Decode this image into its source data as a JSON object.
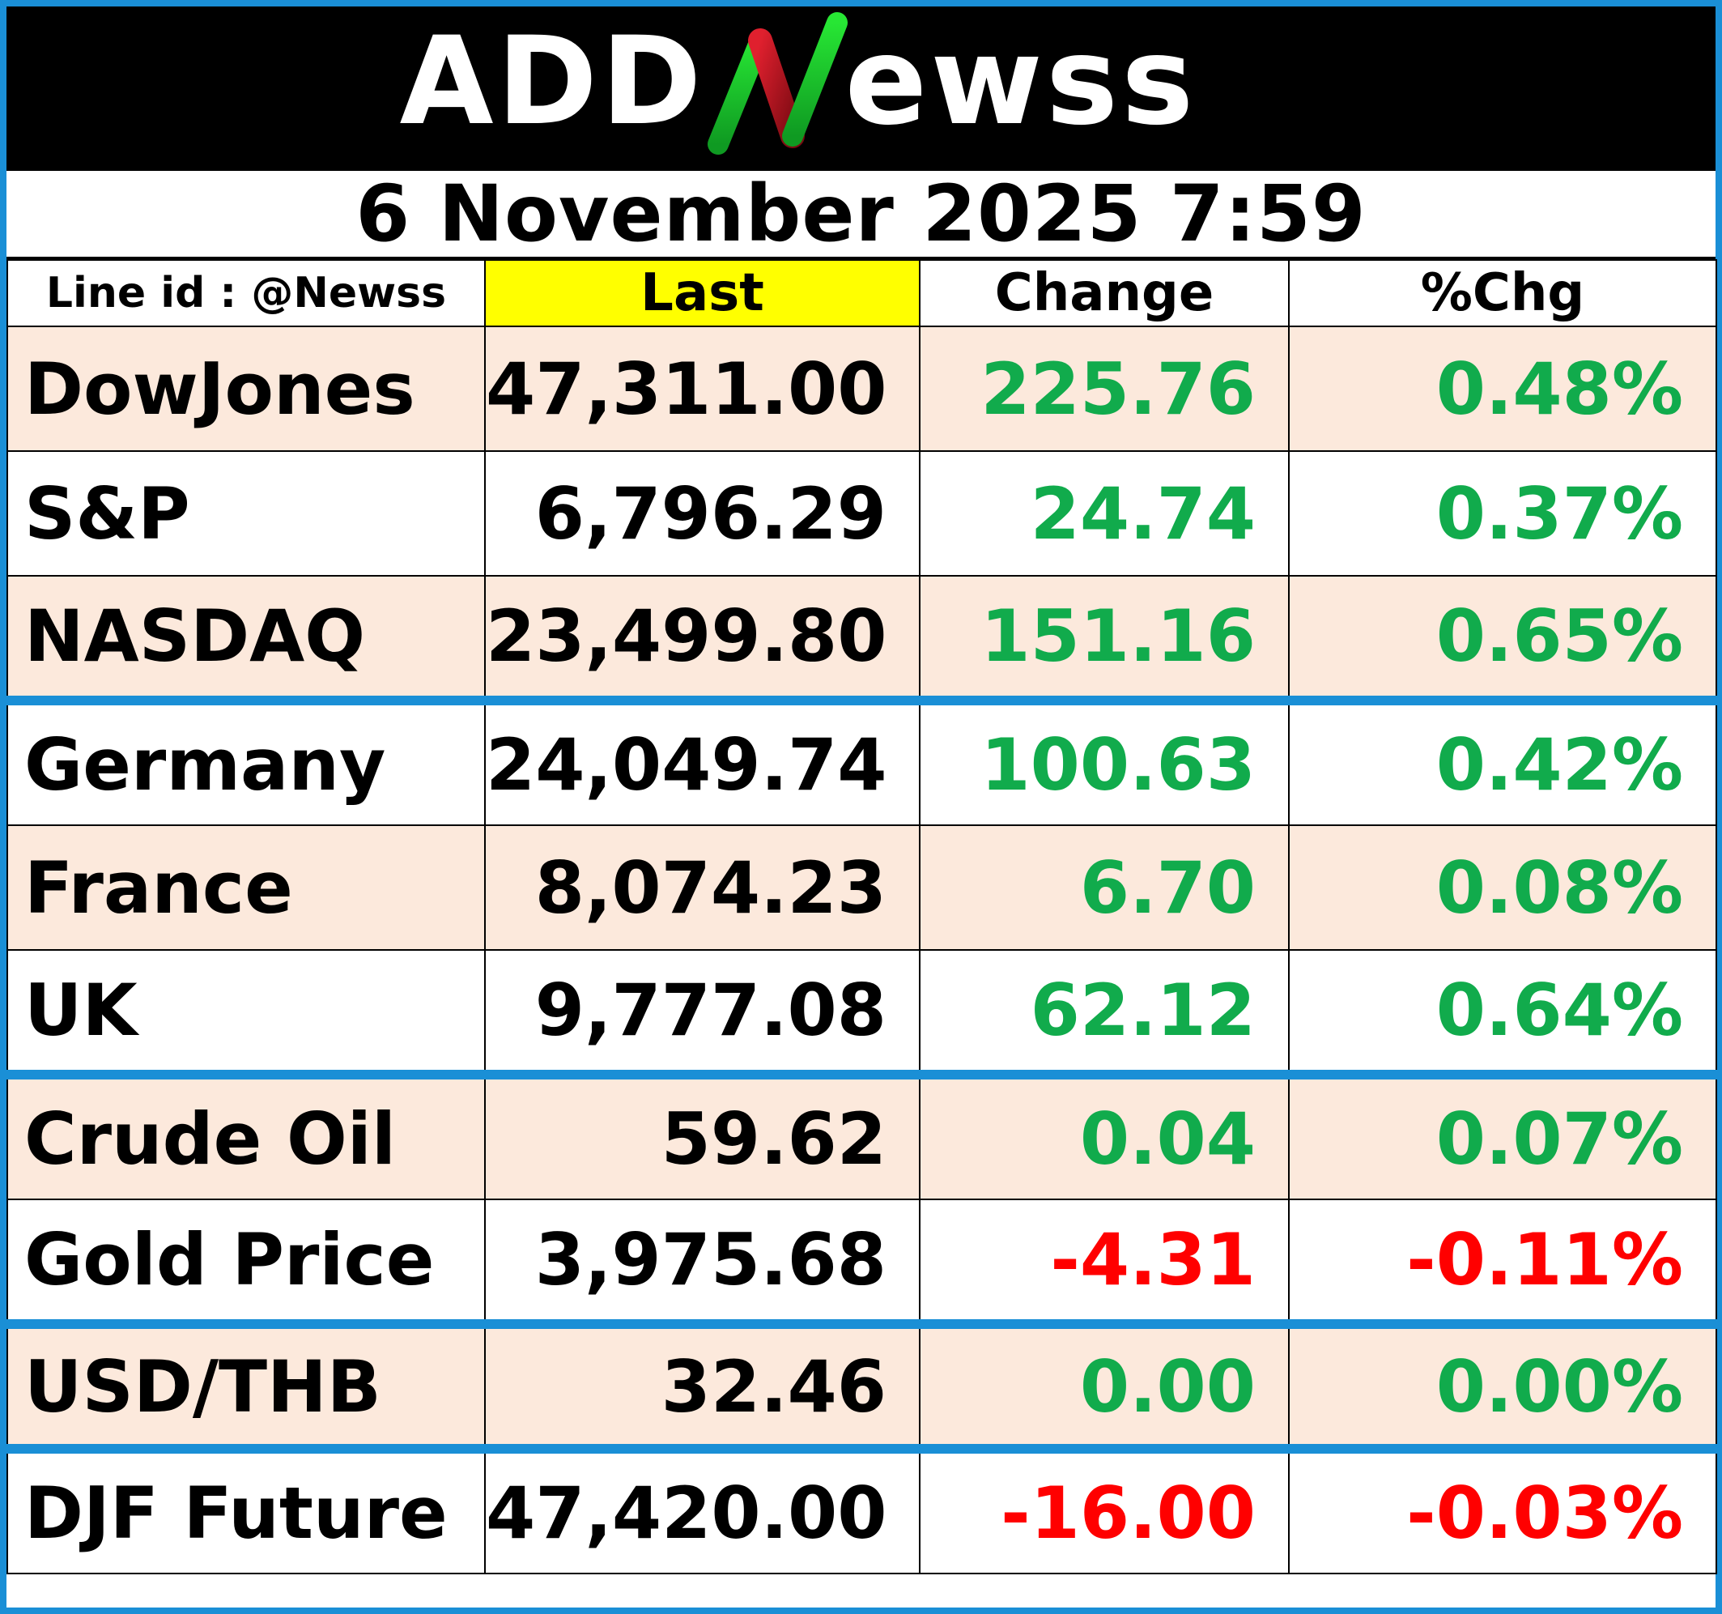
{
  "brand": {
    "logo_text": "ADDNewss",
    "logo_parts": {
      "left": "ADD",
      "right": "ewss"
    },
    "logo_colors": {
      "text": "#ffffff",
      "n_green": "#1ec42c",
      "n_red": "#c8102e",
      "background": "#000000"
    }
  },
  "date_time": "6 November 2025  7:59",
  "headers": {
    "line_id": "Line id : @Newss",
    "last": "Last",
    "change": "Change",
    "pct_change": "%Chg"
  },
  "colors": {
    "positive": "#11ab4c",
    "negative": "#ff0000",
    "shade": "#fce9dc",
    "accent_border": "#1a8fd6",
    "header_highlight": "#ffff00"
  },
  "rows": [
    {
      "name": "DowJones",
      "last": "47,311.00",
      "change": "225.76",
      "pct": "0.48%",
      "direction": "up"
    },
    {
      "name": "S&P",
      "last": "6,796.29",
      "change": "24.74",
      "pct": "0.37%",
      "direction": "up"
    },
    {
      "name": "NASDAQ",
      "last": "23,499.80",
      "change": "151.16",
      "pct": "0.65%",
      "direction": "up"
    },
    {
      "name": "Germany",
      "last": "24,049.74",
      "change": "100.63",
      "pct": "0.42%",
      "direction": "up"
    },
    {
      "name": "France",
      "last": "8,074.23",
      "change": "6.70",
      "pct": "0.08%",
      "direction": "up"
    },
    {
      "name": "UK",
      "last": "9,777.08",
      "change": "62.12",
      "pct": "0.64%",
      "direction": "up"
    },
    {
      "name": "Crude Oil",
      "last": "59.62",
      "change": "0.04",
      "pct": "0.07%",
      "direction": "up"
    },
    {
      "name": "Gold Price",
      "last": "3,975.68",
      "change": "-4.31",
      "pct": "-0.11%",
      "direction": "down"
    },
    {
      "name": "USD/THB",
      "last": "32.46",
      "change": "0.00",
      "pct": "0.00%",
      "direction": "flat"
    },
    {
      "name": "DJF Future",
      "last": "47,420.00",
      "change": "-16.00",
      "pct": "-0.03%",
      "direction": "down"
    }
  ]
}
